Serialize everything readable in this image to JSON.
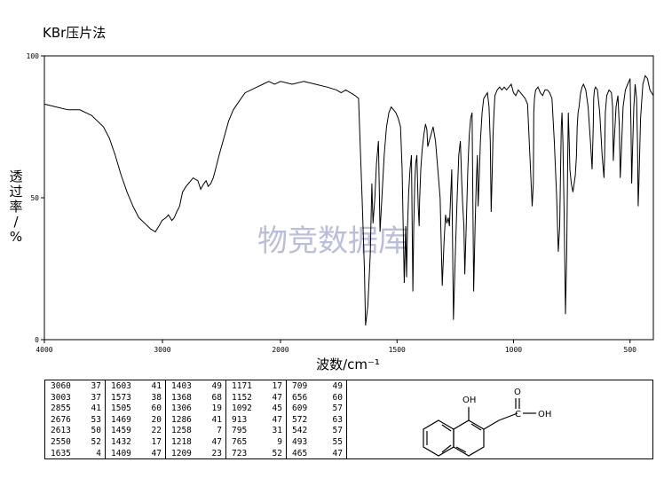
{
  "page_title": "KBr压片法",
  "watermark": "物竞数据库",
  "chart_data": {
    "type": "line",
    "title": "KBr压片法",
    "xlabel": "波数/cm⁻¹",
    "ylabel": "透过率/%",
    "xlim": [
      4000,
      400
    ],
    "ylim": [
      0,
      100
    ],
    "x_ticks": [
      4000,
      3000,
      2000,
      1500,
      1000,
      500
    ],
    "y_ticks": [
      0,
      50,
      100
    ],
    "grid": false,
    "series": [
      {
        "x": [
          4000,
          3900,
          3800,
          3700,
          3600,
          3500,
          3450,
          3400,
          3350,
          3300,
          3250,
          3200,
          3150,
          3100,
          3060,
          3030,
          3003,
          2970,
          2950,
          2920,
          2900,
          2880,
          2855,
          2830,
          2800,
          2780,
          2760,
          2740,
          2700,
          2676,
          2650,
          2630,
          2613,
          2590,
          2570,
          2550,
          2520,
          2480,
          2440,
          2400,
          2350,
          2300,
          2250,
          2200,
          2150,
          2100,
          2050,
          2000,
          1950,
          1900,
          1850,
          1800,
          1760,
          1740,
          1720,
          1700,
          1680,
          1665,
          1650,
          1640,
          1635,
          1625,
          1615,
          1608,
          1603,
          1595,
          1588,
          1580,
          1573,
          1565,
          1555,
          1545,
          1535,
          1525,
          1515,
          1505,
          1495,
          1485,
          1478,
          1469,
          1463,
          1459,
          1455,
          1450,
          1444,
          1438,
          1432,
          1428,
          1424,
          1420,
          1415,
          1409,
          1405,
          1403,
          1398,
          1392,
          1385,
          1378,
          1372,
          1368,
          1362,
          1355,
          1345,
          1335,
          1325,
          1315,
          1306,
          1298,
          1292,
          1286,
          1280,
          1275,
          1270,
          1265,
          1258,
          1250,
          1242,
          1235,
          1228,
          1222,
          1218,
          1213,
          1209,
          1203,
          1196,
          1190,
          1184,
          1178,
          1171,
          1165,
          1160,
          1155,
          1152,
          1148,
          1142,
          1135,
          1128,
          1120,
          1112,
          1105,
          1100,
          1096,
          1092,
          1088,
          1084,
          1080,
          1070,
          1060,
          1050,
          1040,
          1030,
          1020,
          1010,
          1000,
          990,
          980,
          970,
          960,
          950,
          940,
          930,
          920,
          915,
          913,
          910,
          905,
          895,
          885,
          875,
          865,
          855,
          845,
          835,
          825,
          815,
          808,
          802,
          798,
          795,
          792,
          788,
          783,
          777,
          772,
          768,
          765,
          762,
          758,
          752,
          745,
          740,
          735,
          730,
          727,
          723,
          719,
          715,
          712,
          709,
          706,
          700,
          690,
          680,
          670,
          663,
          658,
          656,
          653,
          648,
          640,
          630,
          620,
          612,
          609,
          606,
          600,
          590,
          580,
          575,
          572,
          568,
          560,
          552,
          546,
          542,
          538,
          530,
          520,
          510,
          500,
          496,
          493,
          490,
          484,
          478,
          472,
          468,
          465,
          462,
          455,
          445,
          435,
          425,
          415,
          400
        ],
        "y": [
          83,
          82,
          81,
          81,
          79,
          75,
          71,
          65,
          58,
          52,
          47,
          43,
          41,
          39,
          38,
          40,
          42,
          43,
          44,
          42,
          43,
          45,
          47,
          52,
          54,
          55,
          56,
          57,
          56,
          53,
          55,
          56,
          54,
          55,
          57,
          60,
          65,
          71,
          77,
          81,
          84,
          87,
          88,
          89,
          90,
          91,
          90,
          91,
          90,
          91,
          90,
          89,
          88,
          87,
          88,
          87,
          86,
          85,
          50,
          25,
          5,
          12,
          30,
          55,
          41,
          50,
          62,
          70,
          38,
          50,
          65,
          75,
          80,
          82,
          81,
          80,
          78,
          75,
          60,
          20,
          40,
          22,
          40,
          52,
          60,
          65,
          17,
          40,
          55,
          62,
          65,
          47,
          40,
          49,
          60,
          67,
          72,
          76,
          74,
          68,
          70,
          72,
          75,
          70,
          60,
          50,
          19,
          35,
          44,
          41,
          43,
          40,
          50,
          60,
          7,
          30,
          50,
          65,
          70,
          55,
          47,
          40,
          23,
          40,
          60,
          72,
          78,
          80,
          17,
          40,
          55,
          65,
          47,
          55,
          70,
          80,
          85,
          86,
          87,
          82,
          70,
          45,
          58,
          72,
          80,
          86,
          88,
          89,
          88,
          89,
          88,
          89,
          90,
          87,
          86,
          88,
          87,
          86,
          85,
          83,
          65,
          47,
          55,
          80,
          85,
          88,
          89,
          87,
          86,
          88,
          88,
          87,
          85,
          70,
          50,
          31,
          40,
          60,
          75,
          80,
          70,
          45,
          9,
          30,
          60,
          80,
          72,
          60,
          55,
          52,
          55,
          58,
          65,
          75,
          80,
          82,
          85,
          87,
          88,
          89,
          90,
          88,
          82,
          70,
          60,
          75,
          85,
          88,
          89,
          88,
          80,
          65,
          57,
          65,
          80,
          86,
          88,
          87,
          82,
          63,
          70,
          82,
          86,
          75,
          57,
          65,
          82,
          88,
          90,
          92,
          75,
          55,
          65,
          82,
          90,
          85,
          70,
          47,
          55,
          78,
          90,
          93,
          92,
          88,
          86
        ]
      }
    ]
  },
  "peak_table": [
    {
      "wavenumber": "3060",
      "transmittance": "37"
    },
    {
      "wavenumber": "3003",
      "transmittance": "37"
    },
    {
      "wavenumber": "2855",
      "transmittance": "41"
    },
    {
      "wavenumber": "2676",
      "transmittance": "53"
    },
    {
      "wavenumber": "2613",
      "transmittance": "50"
    },
    {
      "wavenumber": "2550",
      "transmittance": "52"
    },
    {
      "wavenumber": "1635",
      "transmittance": "4"
    },
    {
      "wavenumber": "1603",
      "transmittance": "41"
    },
    {
      "wavenumber": "1573",
      "transmittance": "38"
    },
    {
      "wavenumber": "1505",
      "transmittance": "60"
    },
    {
      "wavenumber": "1469",
      "transmittance": "20"
    },
    {
      "wavenumber": "1459",
      "transmittance": "22"
    },
    {
      "wavenumber": "1432",
      "transmittance": "17"
    },
    {
      "wavenumber": "1409",
      "transmittance": "47"
    },
    {
      "wavenumber": "1403",
      "transmittance": "49"
    },
    {
      "wavenumber": "1368",
      "transmittance": "68"
    },
    {
      "wavenumber": "1306",
      "transmittance": "19"
    },
    {
      "wavenumber": "1286",
      "transmittance": "41"
    },
    {
      "wavenumber": "1258",
      "transmittance": "7"
    },
    {
      "wavenumber": "1218",
      "transmittance": "47"
    },
    {
      "wavenumber": "1209",
      "transmittance": "23"
    },
    {
      "wavenumber": "1171",
      "transmittance": "17"
    },
    {
      "wavenumber": "1152",
      "transmittance": "47"
    },
    {
      "wavenumber": "1092",
      "transmittance": "45"
    },
    {
      "wavenumber": "913",
      "transmittance": "47"
    },
    {
      "wavenumber": "795",
      "transmittance": "31"
    },
    {
      "wavenumber": "765",
      "transmittance": "9"
    },
    {
      "wavenumber": "723",
      "transmittance": "52"
    },
    {
      "wavenumber": "709",
      "transmittance": "49"
    },
    {
      "wavenumber": "656",
      "transmittance": "60"
    },
    {
      "wavenumber": "609",
      "transmittance": "57"
    },
    {
      "wavenumber": "572",
      "transmittance": "63"
    },
    {
      "wavenumber": "542",
      "transmittance": "57"
    },
    {
      "wavenumber": "493",
      "transmittance": "55"
    },
    {
      "wavenumber": "465",
      "transmittance": "47"
    }
  ],
  "structure": {
    "oh_top_label": "OH",
    "carbonyl_o_label": "O",
    "oh_acid_label": "OH",
    "c_label": "C"
  },
  "colors": {
    "line": "#000000",
    "watermark": "#b8bedb",
    "background": "#ffffff"
  }
}
